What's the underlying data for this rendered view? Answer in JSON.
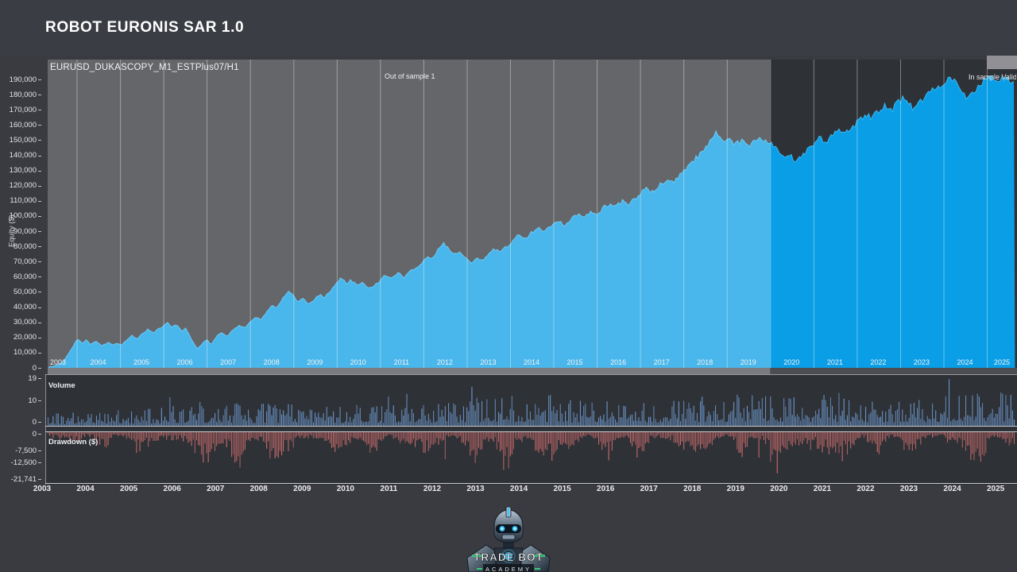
{
  "header": {
    "title": "ROBOT EURONIS SAR 1.0"
  },
  "equity_chart": {
    "instrument_label": "EURUSD_DUKASCOPY_M1_ESTPlus07/H1",
    "out_of_sample_label": "Out of sample 1",
    "in_sample_label": "In sample Valida",
    "y_axis_title": "Equity ($)",
    "y_ticks": [
      "0",
      "10,000",
      "20,000",
      "30,000",
      "40,000",
      "50,000",
      "60,000",
      "70,000",
      "80,000",
      "90,000",
      "100,000",
      "110,000",
      "120,000",
      "130,000",
      "140,000",
      "150,000",
      "160,000",
      "170,000",
      "180,000",
      "190,000"
    ],
    "x_years": [
      "2003",
      "2004",
      "2005",
      "2006",
      "2007",
      "2008",
      "2009",
      "2010",
      "2011",
      "2012",
      "2013",
      "2014",
      "2015",
      "2016",
      "2017",
      "2018",
      "2019",
      "2020",
      "2021",
      "2022",
      "2023",
      "2024",
      "2025"
    ]
  },
  "volume_chart": {
    "label": "Volume",
    "y_ticks": [
      "19",
      "10",
      "0"
    ]
  },
  "drawdown_chart": {
    "label": "Drawdown ($)",
    "y_ticks": [
      "0",
      "-7,500",
      "-12,500",
      "-21,741"
    ]
  },
  "bottom_axis_years": [
    "2003",
    "2004",
    "2005",
    "2006",
    "2007",
    "2008",
    "2009",
    "2010",
    "2011",
    "2012",
    "2013",
    "2014",
    "2015",
    "2016",
    "2017",
    "2018",
    "2019",
    "2020",
    "2021",
    "2022",
    "2023",
    "2024",
    "2025"
  ],
  "logo": {
    "line1": "TRADE BOT",
    "line2": "ACADEMY"
  },
  "colors": {
    "page_bg": "#3a3b41",
    "panel_bg": "#2e3136",
    "axis_band": "#4b4d52",
    "equity_fill": "#0a9ee6",
    "equity_edge": "#3ab5f0",
    "out_of_sample_overlay": "rgba(255,255,255,0.26)",
    "gridline": "rgba(255,255,255,0.38)",
    "volume_bar": "#6e9ad0",
    "drawdown_bar": "#d06e6e",
    "axis_line": "#c7c9cd",
    "logo_glow": "#3cc8ff",
    "logo_accent": "#35d07a"
  },
  "chart_data": [
    {
      "type": "area",
      "name": "equity",
      "title": "EURUSD_DUKASCOPY_M1_ESTPlus07/H1",
      "ylabel": "Equity ($)",
      "ylim": [
        0,
        190000
      ],
      "x_range": [
        2003.35,
        2025.65
      ],
      "grid": "vertical-yearly",
      "regions": [
        {
          "label": "Out of sample 1",
          "from": 2003.35,
          "to": 2020.0,
          "style": "lightened"
        },
        {
          "label": "In sample Validation",
          "from": 2020.0,
          "to": 2025.65,
          "style": "normal"
        }
      ],
      "points": [
        [
          2003.35,
          400
        ],
        [
          2003.5,
          1200
        ],
        [
          2003.62,
          2600
        ],
        [
          2003.72,
          5200
        ],
        [
          2003.82,
          9500
        ],
        [
          2003.92,
          14500
        ],
        [
          2004.02,
          19500
        ],
        [
          2004.12,
          16000
        ],
        [
          2004.22,
          18500
        ],
        [
          2004.32,
          15200
        ],
        [
          2004.45,
          17600
        ],
        [
          2004.58,
          14400
        ],
        [
          2004.72,
          16800
        ],
        [
          2004.85,
          15000
        ],
        [
          2004.95,
          16200
        ],
        [
          2005.05,
          15200
        ],
        [
          2005.15,
          18200
        ],
        [
          2005.28,
          21200
        ],
        [
          2005.4,
          18800
        ],
        [
          2005.52,
          22500
        ],
        [
          2005.65,
          25500
        ],
        [
          2005.78,
          23200
        ],
        [
          2005.9,
          25800
        ],
        [
          2006.0,
          27500
        ],
        [
          2006.1,
          29800
        ],
        [
          2006.2,
          26800
        ],
        [
          2006.3,
          29000
        ],
        [
          2006.42,
          23800
        ],
        [
          2006.52,
          26000
        ],
        [
          2006.65,
          18500
        ],
        [
          2006.78,
          12800
        ],
        [
          2006.9,
          15800
        ],
        [
          2007.0,
          18800
        ],
        [
          2007.1,
          15200
        ],
        [
          2007.22,
          20500
        ],
        [
          2007.35,
          23200
        ],
        [
          2007.48,
          21000
        ],
        [
          2007.6,
          24500
        ],
        [
          2007.75,
          28200
        ],
        [
          2007.88,
          26500
        ],
        [
          2008.0,
          30000
        ],
        [
          2008.12,
          33800
        ],
        [
          2008.25,
          31500
        ],
        [
          2008.38,
          36500
        ],
        [
          2008.5,
          41500
        ],
        [
          2008.62,
          39500
        ],
        [
          2008.75,
          45500
        ],
        [
          2008.88,
          50500
        ],
        [
          2009.0,
          47500
        ],
        [
          2009.1,
          43500
        ],
        [
          2009.22,
          46200
        ],
        [
          2009.35,
          41800
        ],
        [
          2009.48,
          44800
        ],
        [
          2009.6,
          48200
        ],
        [
          2009.72,
          46500
        ],
        [
          2009.85,
          50500
        ],
        [
          2010.0,
          55500
        ],
        [
          2010.1,
          59000
        ],
        [
          2010.22,
          55800
        ],
        [
          2010.35,
          57800
        ],
        [
          2010.48,
          53800
        ],
        [
          2010.6,
          56200
        ],
        [
          2010.75,
          52500
        ],
        [
          2010.88,
          54800
        ],
        [
          2011.0,
          57200
        ],
        [
          2011.12,
          60800
        ],
        [
          2011.25,
          58200
        ],
        [
          2011.4,
          62500
        ],
        [
          2011.55,
          59800
        ],
        [
          2011.7,
          64000
        ],
        [
          2011.85,
          66500
        ],
        [
          2012.0,
          69800
        ],
        [
          2012.1,
          73500
        ],
        [
          2012.2,
          71500
        ],
        [
          2012.32,
          77500
        ],
        [
          2012.45,
          81800
        ],
        [
          2012.58,
          78800
        ],
        [
          2012.7,
          74800
        ],
        [
          2012.85,
          76800
        ],
        [
          2013.0,
          71800
        ],
        [
          2013.12,
          68800
        ],
        [
          2013.25,
          72800
        ],
        [
          2013.38,
          70200
        ],
        [
          2013.5,
          74800
        ],
        [
          2013.62,
          78200
        ],
        [
          2013.78,
          75800
        ],
        [
          2013.92,
          79800
        ],
        [
          2014.05,
          83800
        ],
        [
          2014.2,
          87800
        ],
        [
          2014.35,
          84800
        ],
        [
          2014.5,
          89200
        ],
        [
          2014.65,
          91800
        ],
        [
          2014.8,
          89800
        ],
        [
          2014.95,
          93500
        ],
        [
          2015.1,
          96800
        ],
        [
          2015.25,
          94200
        ],
        [
          2015.4,
          97800
        ],
        [
          2015.55,
          100800
        ],
        [
          2015.7,
          98800
        ],
        [
          2015.85,
          102800
        ],
        [
          2016.0,
          100200
        ],
        [
          2016.12,
          104800
        ],
        [
          2016.28,
          107800
        ],
        [
          2016.42,
          105800
        ],
        [
          2016.58,
          109800
        ],
        [
          2016.72,
          107200
        ],
        [
          2016.88,
          111800
        ],
        [
          2017.0,
          114800
        ],
        [
          2017.15,
          117800
        ],
        [
          2017.3,
          115800
        ],
        [
          2017.45,
          120800
        ],
        [
          2017.6,
          123800
        ],
        [
          2017.75,
          121800
        ],
        [
          2017.9,
          126800
        ],
        [
          2018.05,
          131000
        ],
        [
          2018.2,
          135500
        ],
        [
          2018.35,
          140000
        ],
        [
          2018.5,
          145000
        ],
        [
          2018.62,
          150000
        ],
        [
          2018.75,
          154500
        ],
        [
          2018.85,
          151500
        ],
        [
          2018.95,
          148000
        ],
        [
          2019.08,
          151000
        ],
        [
          2019.2,
          147000
        ],
        [
          2019.35,
          150000
        ],
        [
          2019.5,
          146500
        ],
        [
          2019.65,
          149500
        ],
        [
          2019.8,
          151500
        ],
        [
          2019.92,
          149800
        ],
        [
          2020.05,
          148000
        ],
        [
          2020.18,
          143000
        ],
        [
          2020.32,
          137500
        ],
        [
          2020.45,
          140500
        ],
        [
          2020.58,
          136000
        ],
        [
          2020.72,
          139500
        ],
        [
          2020.85,
          143500
        ],
        [
          2021.0,
          147500
        ],
        [
          2021.15,
          151500
        ],
        [
          2021.3,
          148500
        ],
        [
          2021.45,
          154000
        ],
        [
          2021.6,
          157500
        ],
        [
          2021.75,
          154800
        ],
        [
          2021.9,
          159000
        ],
        [
          2022.05,
          163000
        ],
        [
          2022.2,
          167500
        ],
        [
          2022.35,
          164000
        ],
        [
          2022.5,
          169500
        ],
        [
          2022.65,
          172500
        ],
        [
          2022.8,
          169800
        ],
        [
          2022.95,
          174500
        ],
        [
          2023.08,
          177500
        ],
        [
          2023.2,
          173500
        ],
        [
          2023.32,
          170500
        ],
        [
          2023.45,
          175500
        ],
        [
          2023.6,
          179500
        ],
        [
          2023.75,
          182500
        ],
        [
          2023.9,
          185500
        ],
        [
          2024.05,
          188500
        ],
        [
          2024.18,
          191000
        ],
        [
          2024.3,
          186500
        ],
        [
          2024.42,
          181500
        ],
        [
          2024.55,
          176500
        ],
        [
          2024.68,
          181000
        ],
        [
          2024.82,
          185500
        ],
        [
          2024.95,
          189000
        ],
        [
          2025.1,
          191500
        ],
        [
          2025.25,
          190000
        ],
        [
          2025.45,
          190500
        ],
        [
          2025.65,
          189500
        ]
      ]
    },
    {
      "type": "bar",
      "name": "volume",
      "title": "Volume",
      "ylim": [
        0,
        19
      ],
      "bar_style": "dense thin vertical bars from zero line upward",
      "yearly_avg_height": {
        "2003": 2.8,
        "2004": 3.2,
        "2005": 3.8,
        "2006": 4.4,
        "2007": 5.2,
        "2008": 4.8,
        "2009": 4.0,
        "2010": 4.4,
        "2011": 4.8,
        "2012": 5.2,
        "2013": 6.0,
        "2014": 6.4,
        "2015": 5.6,
        "2016": 6.0,
        "2017": 5.6,
        "2018": 6.2,
        "2019": 6.6,
        "2020": 6.2,
        "2021": 6.6,
        "2022": 5.8,
        "2023": 6.2,
        "2024": 7.6,
        "2025": 7.0
      },
      "max_value": 19
    },
    {
      "type": "bar",
      "name": "drawdown",
      "title": "Drawdown ($)",
      "ylim": [
        -21741,
        0
      ],
      "bar_style": "dense thin vertical bars hanging below zero line",
      "yearly_max_depth": {
        "2003": 5000,
        "2004": 8000,
        "2005": 10000,
        "2006": 14000,
        "2007": 21000,
        "2008": 13000,
        "2009": 11000,
        "2010": 12000,
        "2011": 10000,
        "2012": 13000,
        "2013": 18000,
        "2014": 16000,
        "2015": 11000,
        "2016": 13000,
        "2017": 10000,
        "2018": 9000,
        "2019": 12000,
        "2020": 21741,
        "2021": 14000,
        "2022": 11000,
        "2023": 10000,
        "2024": 15000,
        "2025": 9000
      },
      "min_value": -21741
    }
  ]
}
